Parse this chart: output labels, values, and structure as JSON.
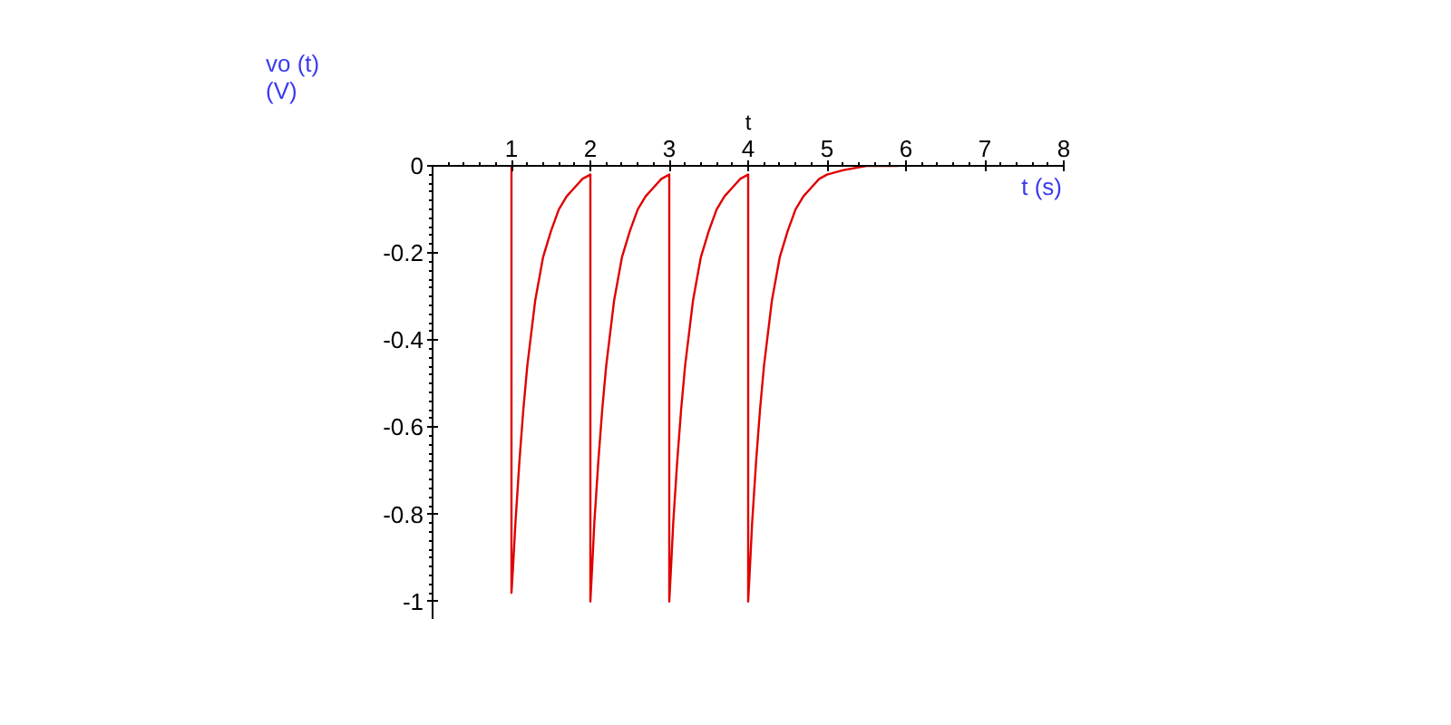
{
  "chart_data": {
    "type": "line",
    "xlabel": "t",
    "ylabel": "vo (t)\n(V)",
    "annotations": [
      "t (s)"
    ],
    "xlim": [
      0,
      8
    ],
    "ylim": [
      -1.04,
      0
    ],
    "xticks": [
      1,
      2,
      3,
      4,
      5,
      6,
      7,
      8
    ],
    "yticks": [
      0,
      -0.2,
      -0.4,
      -0.6,
      -0.8,
      -1
    ],
    "grid": false,
    "marker": "none",
    "line_style": "solid",
    "series": [
      {
        "color": "#e00000",
        "x": [
          1,
          1,
          1.02,
          1.05,
          1.1,
          1.15,
          1.2,
          1.3,
          1.4,
          1.5,
          1.6,
          1.7,
          1.8,
          1.9,
          2,
          2,
          2.02,
          2.05,
          2.1,
          2.15,
          2.2,
          2.3,
          2.4,
          2.5,
          2.6,
          2.7,
          2.8,
          2.9,
          3,
          3,
          3.02,
          3.05,
          3.1,
          3.15,
          3.2,
          3.3,
          3.4,
          3.5,
          3.6,
          3.7,
          3.8,
          3.9,
          4,
          4,
          4.02,
          4.05,
          4.1,
          4.15,
          4.2,
          4.3,
          4.4,
          4.5,
          4.6,
          4.7,
          4.8,
          4.9,
          5,
          5.2,
          5.5,
          5.9
        ],
        "values": [
          0,
          -0.98,
          -0.92,
          -0.82,
          -0.68,
          -0.56,
          -0.46,
          -0.31,
          -0.21,
          -0.15,
          -0.1,
          -0.07,
          -0.05,
          -0.03,
          -0.02,
          -1,
          -0.93,
          -0.82,
          -0.68,
          -0.56,
          -0.46,
          -0.31,
          -0.21,
          -0.15,
          -0.1,
          -0.07,
          -0.05,
          -0.03,
          -0.02,
          -1,
          -0.93,
          -0.82,
          -0.68,
          -0.56,
          -0.46,
          -0.31,
          -0.21,
          -0.15,
          -0.1,
          -0.07,
          -0.05,
          -0.03,
          -0.02,
          -1,
          -0.93,
          -0.82,
          -0.68,
          -0.56,
          -0.46,
          -0.31,
          -0.21,
          -0.15,
          -0.1,
          -0.07,
          -0.05,
          -0.03,
          -0.02,
          -0.01,
          0,
          0
        ]
      }
    ]
  }
}
